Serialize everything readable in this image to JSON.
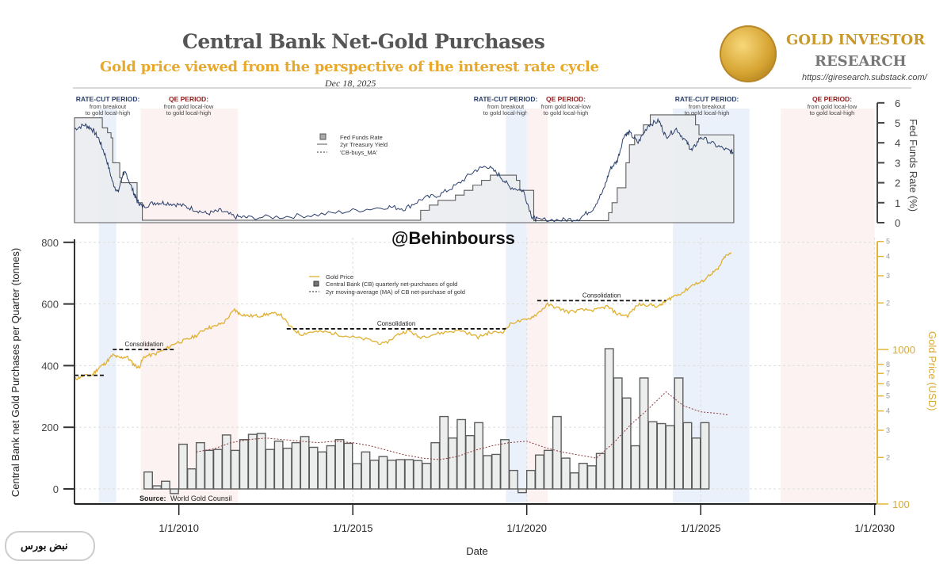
{
  "header": {
    "title": "Central Bank Net-Gold Purchases",
    "subtitle": "Gold price viewed from the perspective of the interest rate cycle",
    "date": "Dec 18, 2025",
    "brand_line1": "GOLD INVESTOR",
    "brand_line2": "RESEARCH",
    "brand_url": "https://giresearch.substack.com/"
  },
  "watermark": "@Behinbourss",
  "footer_logo": "نبض بورس",
  "colors": {
    "gold": "#e0b030",
    "gold_axis": "#e3b43a",
    "rate_fill": "#eceef1",
    "treasury": "#2b3f6b",
    "ma": "#8b3a3a",
    "ratecut_band": "#e8eefa",
    "qe_band": "#fbf0f0",
    "ratecut_label": "#2b3f6b",
    "qe_label": "#8b2020"
  },
  "chart_data": [
    {
      "type": "line",
      "panel": "top",
      "title": "",
      "ylabel": "Fed Funds Rate (%)",
      "ylim": [
        0,
        6
      ],
      "yticks": [
        "0",
        "1",
        "2",
        "3",
        "4",
        "5",
        "6"
      ],
      "legend": {
        "placement": "top-center",
        "entries": [
          "Fed Funds Rate",
          "2yr Treasury Yield",
          "'CB-buys_MA'"
        ]
      },
      "period_bands": [
        {
          "kind": "rate-cut",
          "title": "RATE-CUT PERIOD:",
          "line1": "from breakout",
          "line2": "to gold local-high",
          "start": 2007.7,
          "end": 2008.2
        },
        {
          "kind": "qe",
          "title": "QE PERIOD:",
          "line1": "from gold local-low",
          "line2": "to gold local-high",
          "start": 2008.9,
          "end": 2011.7
        },
        {
          "kind": "rate-cut",
          "title": "RATE-CUT PERIOD:",
          "line1": "from breakout",
          "line2": "to gold local-high",
          "start": 2019.4,
          "end": 2020.0
        },
        {
          "kind": "qe",
          "title": "QE PERIOD:",
          "line1": "from gold local-low",
          "line2": "to gold local-high",
          "start": 2020.0,
          "end": 2020.6
        },
        {
          "kind": "rate-cut",
          "title": "RATE-CUT PERIOD:",
          "line1": "from breakout",
          "line2": "to gold local-high",
          "start": 2024.2,
          "end": 2026.4
        },
        {
          "kind": "qe",
          "title": "QE PERIOD:",
          "line1": "from gold local-low",
          "line2": "to gold local-high",
          "start": 2027.3,
          "end": 2030.0
        }
      ],
      "series": [
        {
          "name": "Fed Funds Rate",
          "x": [
            2007.0,
            2007.7,
            2007.8,
            2007.95,
            2008.05,
            2008.1,
            2008.3,
            2008.35,
            2008.8,
            2008.95,
            2015.95,
            2016.95,
            2017.2,
            2017.45,
            2017.95,
            2018.2,
            2018.45,
            2018.7,
            2018.95,
            2019.55,
            2019.7,
            2019.8,
            2020.2,
            2022.2,
            2022.35,
            2022.45,
            2022.6,
            2022.85,
            2022.95,
            2023.1,
            2023.35,
            2023.55,
            2024.7,
            2024.85,
            2024.95,
            2025.7,
            2025.95
          ],
          "y": [
            5.25,
            5.25,
            4.75,
            4.5,
            4.25,
            3.0,
            2.25,
            2.0,
            1.0,
            0.12,
            0.12,
            0.62,
            0.88,
            1.12,
            1.38,
            1.62,
            1.88,
            2.12,
            2.38,
            2.38,
            2.12,
            1.62,
            0.1,
            0.1,
            0.5,
            1.0,
            1.75,
            3.0,
            3.9,
            4.4,
            4.9,
            5.4,
            5.4,
            4.9,
            4.4,
            4.4,
            3.9
          ]
        },
        {
          "name": "2yr Treasury Yield",
          "x": [
            2007.0,
            2007.3,
            2007.5,
            2007.7,
            2007.9,
            2008.1,
            2008.25,
            2008.4,
            2008.5,
            2008.7,
            2008.8,
            2008.95,
            2009.3,
            2009.6,
            2010.0,
            2010.4,
            2010.8,
            2011.2,
            2011.6,
            2012.0,
            2013.0,
            2014.0,
            2015.0,
            2016.0,
            2016.5,
            2017.0,
            2017.5,
            2018.0,
            2018.5,
            2018.85,
            2019.2,
            2019.5,
            2019.9,
            2020.15,
            2020.3,
            2021.0,
            2021.5,
            2021.9,
            2022.2,
            2022.4,
            2022.6,
            2022.8,
            2022.95,
            2023.2,
            2023.5,
            2023.8,
            2024.0,
            2024.3,
            2024.6,
            2024.75,
            2025.0,
            2025.4,
            2025.8,
            2025.95
          ],
          "y": [
            4.7,
            4.9,
            4.7,
            4.2,
            3.3,
            2.0,
            1.5,
            2.5,
            2.4,
            1.5,
            1.1,
            0.8,
            1.0,
            1.0,
            0.9,
            0.7,
            0.45,
            0.6,
            0.3,
            0.25,
            0.3,
            0.4,
            0.6,
            0.8,
            0.7,
            1.2,
            1.4,
            1.9,
            2.6,
            2.85,
            2.4,
            1.8,
            1.6,
            0.3,
            0.15,
            0.13,
            0.2,
            0.7,
            1.6,
            2.7,
            3.1,
            4.4,
            4.5,
            4.0,
            4.9,
            5.1,
            4.3,
            4.7,
            4.0,
            3.6,
            4.3,
            3.9,
            3.6,
            3.5
          ]
        }
      ]
    },
    {
      "type": "bar",
      "panel": "bottom",
      "xlabel": "Date",
      "ylabel": "Central Bank net Gold Purchases per Quarter (tonnes)",
      "ylabel_right": "Gold Price (USD)",
      "ylim": [
        0,
        800
      ],
      "yticks": [
        "0",
        "200",
        "400",
        "600",
        "800"
      ],
      "y2_scale": "log",
      "y2lim": [
        100,
        5000
      ],
      "y2ticks": [
        {
          "v": 100,
          "label": "100"
        },
        {
          "v": 200,
          "label": "2"
        },
        {
          "v": 300,
          "label": "3"
        },
        {
          "v": 400,
          "label": "4"
        },
        {
          "v": 500,
          "label": "5"
        },
        {
          "v": 600,
          "label": "6"
        },
        {
          "v": 700,
          "label": "7"
        },
        {
          "v": 800,
          "label": "8"
        },
        {
          "v": 1000,
          "label": "1000"
        },
        {
          "v": 2000,
          "label": "2"
        },
        {
          "v": 3000,
          "label": "3"
        },
        {
          "v": 4000,
          "label": "4"
        },
        {
          "v": 5000,
          "label": "5"
        }
      ],
      "xlim": [
        2007.0,
        2030.0
      ],
      "xticks": [
        {
          "v": 2010,
          "label": "1/1/2010"
        },
        {
          "v": 2015,
          "label": "1/1/2015"
        },
        {
          "v": 2020,
          "label": "1/1/2020"
        },
        {
          "v": 2025,
          "label": "1/1/2025"
        },
        {
          "v": 2030,
          "label": "1/1/2030"
        }
      ],
      "legend": {
        "placement": "top-center",
        "entries": [
          "Gold Price",
          "Central Bank (CB) quarterly net-purchases of gold",
          "2yr moving-average (MA) of CB net-purchase of gold"
        ]
      },
      "source": {
        "label": "Source:",
        "text": "World Gold Counsil"
      },
      "bars_start": 2009.0,
      "bars_step": 0.25,
      "cb_quarterly_tonnes": [
        55,
        10,
        25,
        -15,
        145,
        65,
        150,
        125,
        128,
        175,
        125,
        160,
        177,
        180,
        128,
        155,
        132,
        150,
        170,
        135,
        120,
        140,
        160,
        148,
        82,
        120,
        93,
        105,
        93,
        95,
        95,
        92,
        83,
        150,
        235,
        165,
        225,
        173,
        215,
        108,
        112,
        160,
        60,
        -12,
        60,
        110,
        125,
        235,
        100,
        52,
        83,
        75,
        115,
        455,
        360,
        295,
        140,
        360,
        218,
        212,
        205,
        360,
        215,
        165,
        215
      ],
      "cb_ma_tonnes": {
        "x": [
          2010.5,
          2011.0,
          2011.5,
          2012.0,
          2012.5,
          2013.0,
          2013.5,
          2014.0,
          2014.5,
          2015.0,
          2015.5,
          2016.0,
          2016.5,
          2017.0,
          2017.5,
          2018.0,
          2018.5,
          2019.0,
          2019.5,
          2020.0,
          2020.5,
          2021.0,
          2021.5,
          2022.0,
          2022.5,
          2023.0,
          2023.5,
          2024.0,
          2024.5,
          2025.0,
          2025.5,
          2025.8
        ],
        "y": [
          120,
          130,
          150,
          160,
          165,
          160,
          155,
          150,
          155,
          150,
          140,
          125,
          110,
          100,
          95,
          105,
          125,
          140,
          150,
          155,
          135,
          120,
          110,
          100,
          150,
          210,
          260,
          315,
          270,
          250,
          245,
          240
        ]
      },
      "gold_price_usd": {
        "x": [
          2007.0,
          2007.2,
          2007.5,
          2007.7,
          2007.9,
          2008.1,
          2008.3,
          2008.5,
          2008.7,
          2008.85,
          2009.0,
          2009.3,
          2009.6,
          2009.9,
          2010.2,
          2010.5,
          2010.8,
          2011.0,
          2011.3,
          2011.6,
          2011.75,
          2012.0,
          2012.3,
          2012.6,
          2012.9,
          2013.2,
          2013.5,
          2013.8,
          2014.2,
          2014.6,
          2015.0,
          2015.5,
          2015.9,
          2016.3,
          2016.6,
          2016.9,
          2017.3,
          2017.7,
          2018.1,
          2018.6,
          2018.9,
          2019.3,
          2019.6,
          2020.0,
          2020.3,
          2020.6,
          2020.9,
          2021.2,
          2021.6,
          2022.0,
          2022.3,
          2022.6,
          2022.9,
          2023.2,
          2023.5,
          2023.8,
          2024.0,
          2024.2,
          2024.5,
          2024.8,
          2025.0,
          2025.3,
          2025.5,
          2025.7,
          2025.9
        ],
        "y": [
          640,
          670,
          680,
          760,
          820,
          920,
          880,
          900,
          800,
          760,
          900,
          930,
          1000,
          1100,
          1150,
          1230,
          1380,
          1400,
          1500,
          1800,
          1700,
          1650,
          1650,
          1700,
          1700,
          1400,
          1250,
          1300,
          1300,
          1250,
          1200,
          1150,
          1080,
          1250,
          1330,
          1200,
          1250,
          1300,
          1330,
          1200,
          1280,
          1300,
          1500,
          1550,
          1700,
          1950,
          1850,
          1750,
          1800,
          1800,
          1900,
          1700,
          1650,
          1950,
          1950,
          1900,
          2050,
          2200,
          2350,
          2650,
          2700,
          3100,
          3300,
          4000,
          4200
        ]
      },
      "consolidations": [
        {
          "label": "",
          "x0": 2007.0,
          "x1": 2007.9,
          "level": 680
        },
        {
          "label": "Consolidation",
          "x0": 2008.1,
          "x1": 2009.9,
          "level": 1000
        },
        {
          "label": "Consolidation",
          "x0": 2013.1,
          "x1": 2019.4,
          "level": 1360
        },
        {
          "label": "Consolidation",
          "x0": 2020.3,
          "x1": 2024.0,
          "level": 2070
        }
      ]
    }
  ]
}
